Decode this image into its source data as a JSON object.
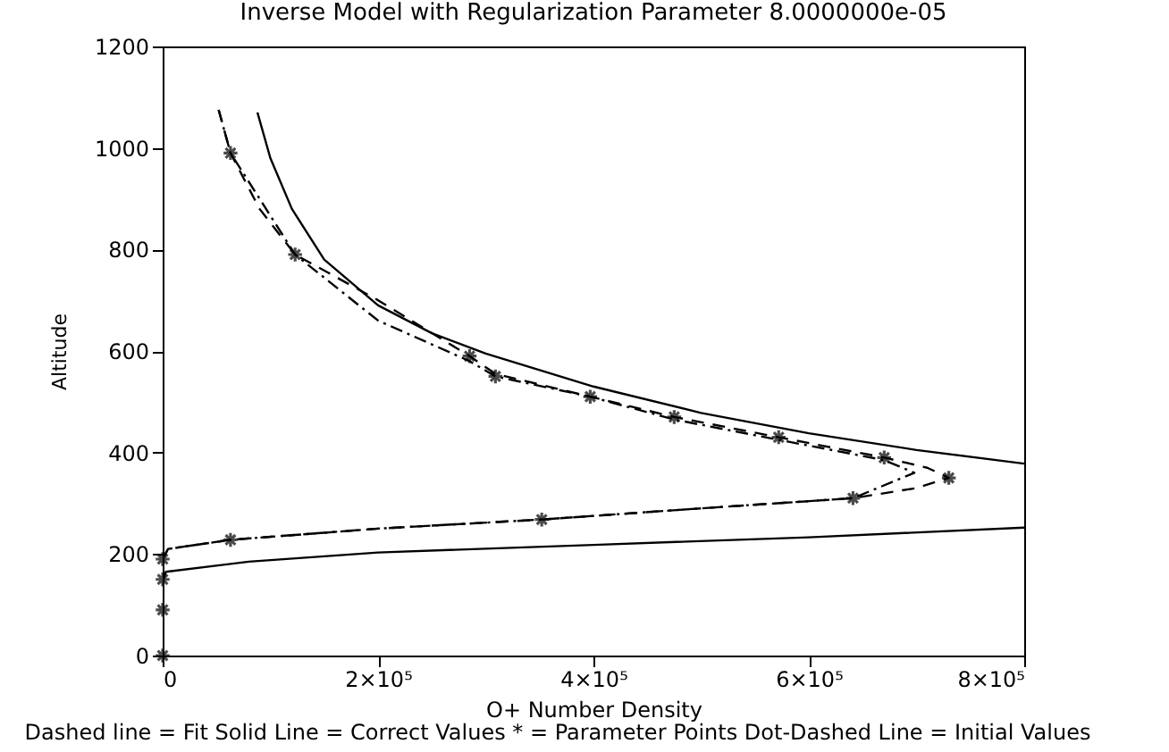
{
  "chart_data": {
    "type": "line",
    "title": "Inverse Model with Regularization Parameter 8.0000000e-05",
    "xlabel": "O+ Number Density",
    "ylabel": "Altitude",
    "xlim": [
      0,
      800000
    ],
    "ylim": [
      0,
      1200
    ],
    "xticks": [
      0,
      {
        "value": 200000,
        "label": "2×10⁵"
      },
      {
        "value": 400000,
        "label": "4×10⁵"
      },
      {
        "value": 600000,
        "label": "6×10⁵"
      },
      {
        "value": 800000,
        "label": "8×10⁵"
      }
    ],
    "yticks": [
      0,
      200,
      400,
      600,
      800,
      1000,
      1200
    ],
    "grid": false,
    "annotations": [
      "Dashed line = Fit  Solid Line = Correct Values  * = Parameter Points  Dot-Dashed Line = Initial Values"
    ],
    "series": [
      {
        "line_style": "solid",
        "color": "#000000",
        "x": [
          88000,
          100000,
          120000,
          150000,
          200000,
          250000,
          300000,
          400000,
          500000,
          600000,
          700000,
          800000
        ],
        "values": [
          1070,
          980,
          880,
          780,
          690,
          635,
          595,
          530,
          478,
          438,
          405,
          378
        ]
      },
      {
        "line_style": "solid",
        "color": "#000000",
        "x": [
          0,
          3000,
          80000,
          200000,
          400000,
          600000,
          800000
        ],
        "values": [
          145,
          165,
          185,
          203,
          218,
          233,
          252
        ]
      },
      {
        "line_style": "dashed",
        "color": "#000000",
        "x": [
          52000,
          63000,
          90000,
          123000,
          200000,
          285000,
          309000,
          397000,
          475000,
          572000,
          670000,
          710000,
          730000,
          700000,
          641000,
          500000,
          352000,
          200000,
          63000,
          5000,
          0,
          0,
          0,
          0
        ],
        "values": [
          1075,
          990,
          880,
          790,
          700,
          590,
          555,
          510,
          470,
          430,
          390,
          370,
          350,
          330,
          310,
          290,
          268,
          250,
          228,
          210,
          190,
          150,
          90,
          0
        ]
      },
      {
        "line_style": "dashdot",
        "color": "#000000",
        "x": [
          52000,
          63000,
          123000,
          200000,
          285000,
          309000,
          397000,
          475000,
          572000,
          670000,
          698000,
          641000,
          500000,
          352000,
          200000,
          63000,
          5000,
          0,
          0
        ],
        "values": [
          1075,
          990,
          790,
          660,
          580,
          550,
          510,
          465,
          425,
          385,
          360,
          310,
          290,
          268,
          250,
          228,
          210,
          190,
          0
        ]
      },
      {
        "type": "scatter",
        "marker": "cross",
        "color": "#000000",
        "x": [
          63000,
          123000,
          285000,
          309000,
          397000,
          475000,
          572000,
          670000,
          730000,
          641000,
          352000,
          63000,
          0,
          0,
          0,
          0
        ],
        "values": [
          990,
          790,
          590,
          550,
          510,
          470,
          430,
          390,
          350,
          310,
          268,
          228,
          190,
          150,
          90,
          0
        ]
      }
    ]
  }
}
